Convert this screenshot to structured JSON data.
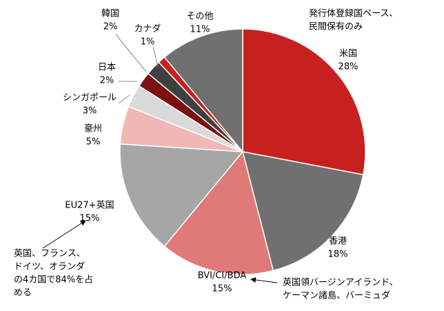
{
  "chart_data": {
    "type": "pie",
    "categories": [
      "米国",
      "香港",
      "BVI/CI/BDA",
      "EU27+英国",
      "豪州",
      "シンガポール",
      "日本",
      "韓国",
      "カナダ",
      "その他"
    ],
    "values": [
      28,
      18,
      15,
      15,
      5,
      3,
      2,
      2,
      1,
      11
    ],
    "value_labels": [
      "28%",
      "18%",
      "15%",
      "15%",
      "5%",
      "3%",
      "2%",
      "2%",
      "1%",
      "11%"
    ],
    "colors": [
      "#c8201e",
      "#707070",
      "#e07a78",
      "#a6a6a6",
      "#f0b8b4",
      "#d9d9d9",
      "#7a1010",
      "#404040",
      "#c8201e",
      "#707070"
    ],
    "annotations": [
      [
        "発行体登録国ベース、",
        "民間保有のみ"
      ],
      [
        "英国、フランス、",
        "ドイツ、オランダ",
        "の4カ国で84%を占",
        "める"
      ],
      [
        "英国領バージンアイランド、",
        "ケーマン諸島、バーミュダ"
      ]
    ]
  }
}
